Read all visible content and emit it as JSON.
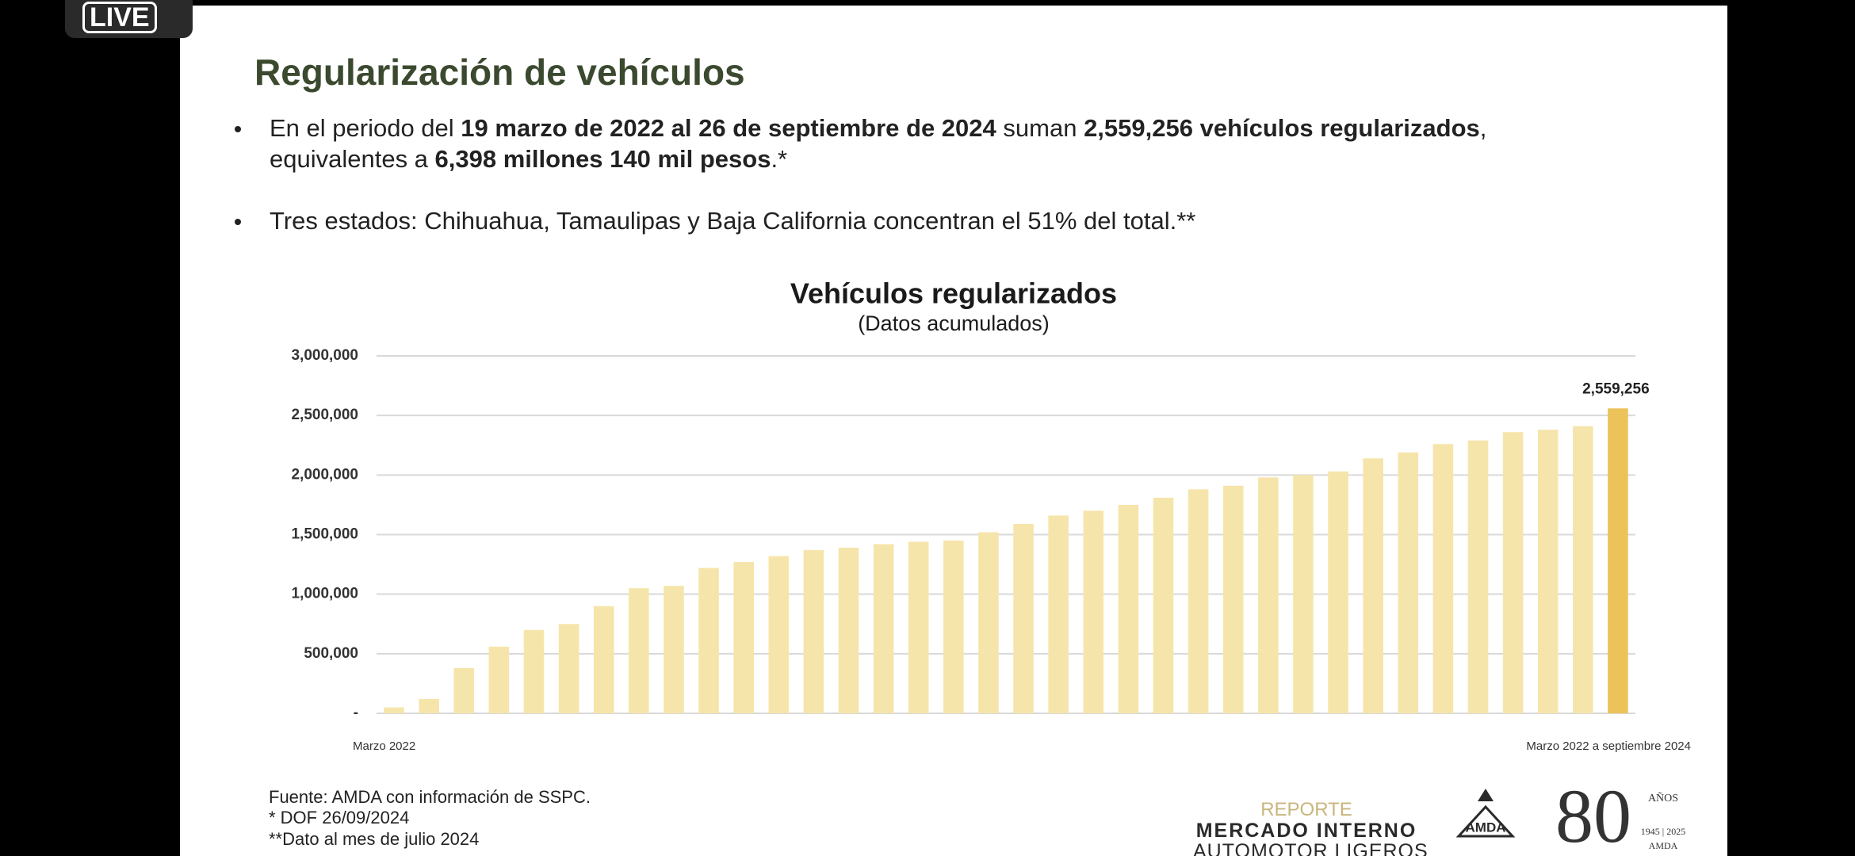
{
  "slide": {
    "badge": "LIVE",
    "title": "Regularización de vehículos",
    "bullets": [
      {
        "lines": [
          [
            {
              "text": "En el periodo del ",
              "bold": false
            },
            {
              "text": "19 marzo de 2022 al 26 de septiembre de 2024",
              "bold": true
            },
            {
              "text": " suman ",
              "bold": false
            },
            {
              "text": "2,559,256 vehículos regularizados",
              "bold": true
            },
            {
              "text": ",",
              "bold": false
            }
          ],
          [
            {
              "text": "equivalentes a ",
              "bold": false
            },
            {
              "text": "6,398 millones 140 mil pesos",
              "bold": true
            },
            {
              "text": ".*",
              "bold": false
            }
          ]
        ]
      },
      {
        "lines": [
          [
            {
              "text": "Tres estados: Chihuahua, Tamaulipas y Baja California concentran el 51% del total.**",
              "bold": false
            }
          ]
        ]
      }
    ],
    "footnotes": [
      "Fuente: AMDA con información de SSPC.",
      "* DOF 26/09/2024",
      "**Dato al mes de julio 2024"
    ],
    "report": [
      "REPORTE",
      "MERCADO INTERNO",
      "AUTOMOTOR LIGEROS"
    ],
    "logo_amda": "AMDA",
    "anniversary": [
      "80",
      "AÑOS",
      "1945 | 2025",
      "AMDA"
    ]
  },
  "chart_data": {
    "type": "bar",
    "title": "Vehículos regularizados",
    "subtitle": "(Datos acumulados)",
    "categories": [
      "Marzo 2022",
      null,
      null,
      null,
      null,
      null,
      null,
      null,
      null,
      null,
      null,
      null,
      null,
      null,
      null,
      null,
      null,
      null,
      null,
      null,
      null,
      null,
      null,
      null,
      null,
      null,
      null,
      null,
      null,
      null,
      null,
      null,
      null,
      null,
      null,
      "Marzo 2022 a septiembre 2024"
    ],
    "values": [
      50000,
      120000,
      380000,
      560000,
      700000,
      750000,
      900000,
      1050000,
      1070000,
      1220000,
      1270000,
      1320000,
      1370000,
      1390000,
      1420000,
      1440000,
      1450000,
      1520000,
      1590000,
      1660000,
      1700000,
      1750000,
      1810000,
      1880000,
      1910000,
      1980000,
      2000000,
      2030000,
      2140000,
      2190000,
      2260000,
      2290000,
      2360000,
      2380000,
      2410000,
      2559256
    ],
    "value_labels": [
      null,
      null,
      null,
      null,
      null,
      null,
      null,
      null,
      null,
      null,
      null,
      null,
      null,
      null,
      null,
      null,
      null,
      null,
      null,
      null,
      null,
      null,
      null,
      null,
      null,
      null,
      null,
      null,
      null,
      null,
      null,
      null,
      null,
      null,
      null,
      "2,559,256"
    ],
    "colors": [
      "#f6e5ab",
      "#f6e5ab",
      "#f6e5ab",
      "#f6e5ab",
      "#f6e5ab",
      "#f6e5ab",
      "#f6e5ab",
      "#f6e5ab",
      "#f6e5ab",
      "#f6e5ab",
      "#f6e5ab",
      "#f6e5ab",
      "#f6e5ab",
      "#f6e5ab",
      "#f6e5ab",
      "#f6e5ab",
      "#f6e5ab",
      "#f6e5ab",
      "#f6e5ab",
      "#f6e5ab",
      "#f6e5ab",
      "#f6e5ab",
      "#f6e5ab",
      "#f6e5ab",
      "#f6e5ab",
      "#f6e5ab",
      "#f6e5ab",
      "#f6e5ab",
      "#f6e5ab",
      "#f6e5ab",
      "#f6e5ab",
      "#f6e5ab",
      "#f6e5ab",
      "#f6e5ab",
      "#f6e5ab",
      "#ecc35a"
    ],
    "ylim": [
      0,
      3000000
    ],
    "yticks": [
      {
        "value": 0,
        "label": "-"
      },
      {
        "value": 500000,
        "label": "500,000"
      },
      {
        "value": 1000000,
        "label": "1,000,000"
      },
      {
        "value": 1500000,
        "label": "1,500,000"
      },
      {
        "value": 2000000,
        "label": "2,000,000"
      },
      {
        "value": 2500000,
        "label": "2,500,000"
      },
      {
        "value": 3000000,
        "label": "3,000,000"
      }
    ],
    "grid": true
  }
}
